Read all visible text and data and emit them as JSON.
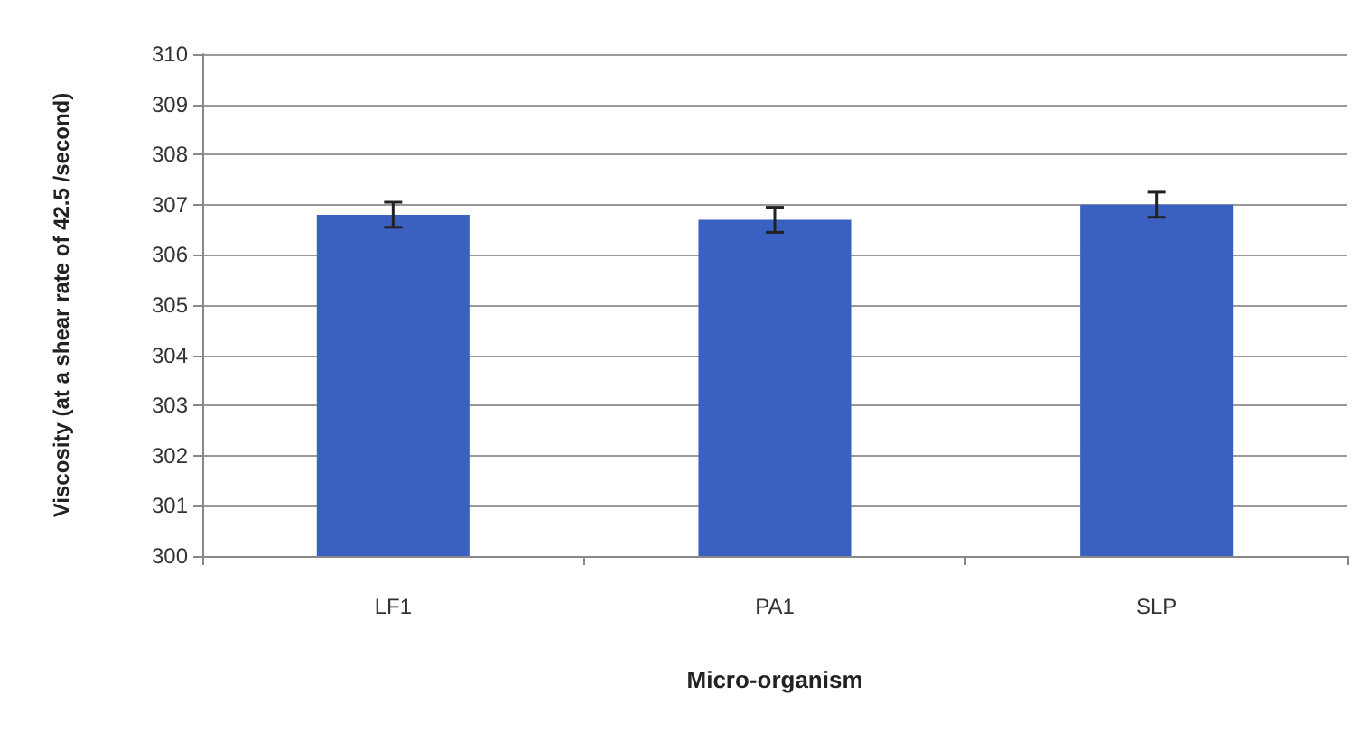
{
  "chart_data": {
    "type": "bar",
    "xlabel": "Micro-organism",
    "ylabel": "Viscosity (at a shear rate of 42.5 /second)",
    "categories": [
      "LF1",
      "PA1",
      "SLP"
    ],
    "values": [
      306.8,
      306.7,
      307.0
    ],
    "errors": [
      0.25,
      0.25,
      0.25
    ],
    "color": "#3a60c2",
    "ylim": [
      300,
      310
    ],
    "yticks": [
      300,
      301,
      302,
      303,
      304,
      305,
      306,
      307,
      308,
      309,
      310
    ],
    "grid": "y"
  }
}
